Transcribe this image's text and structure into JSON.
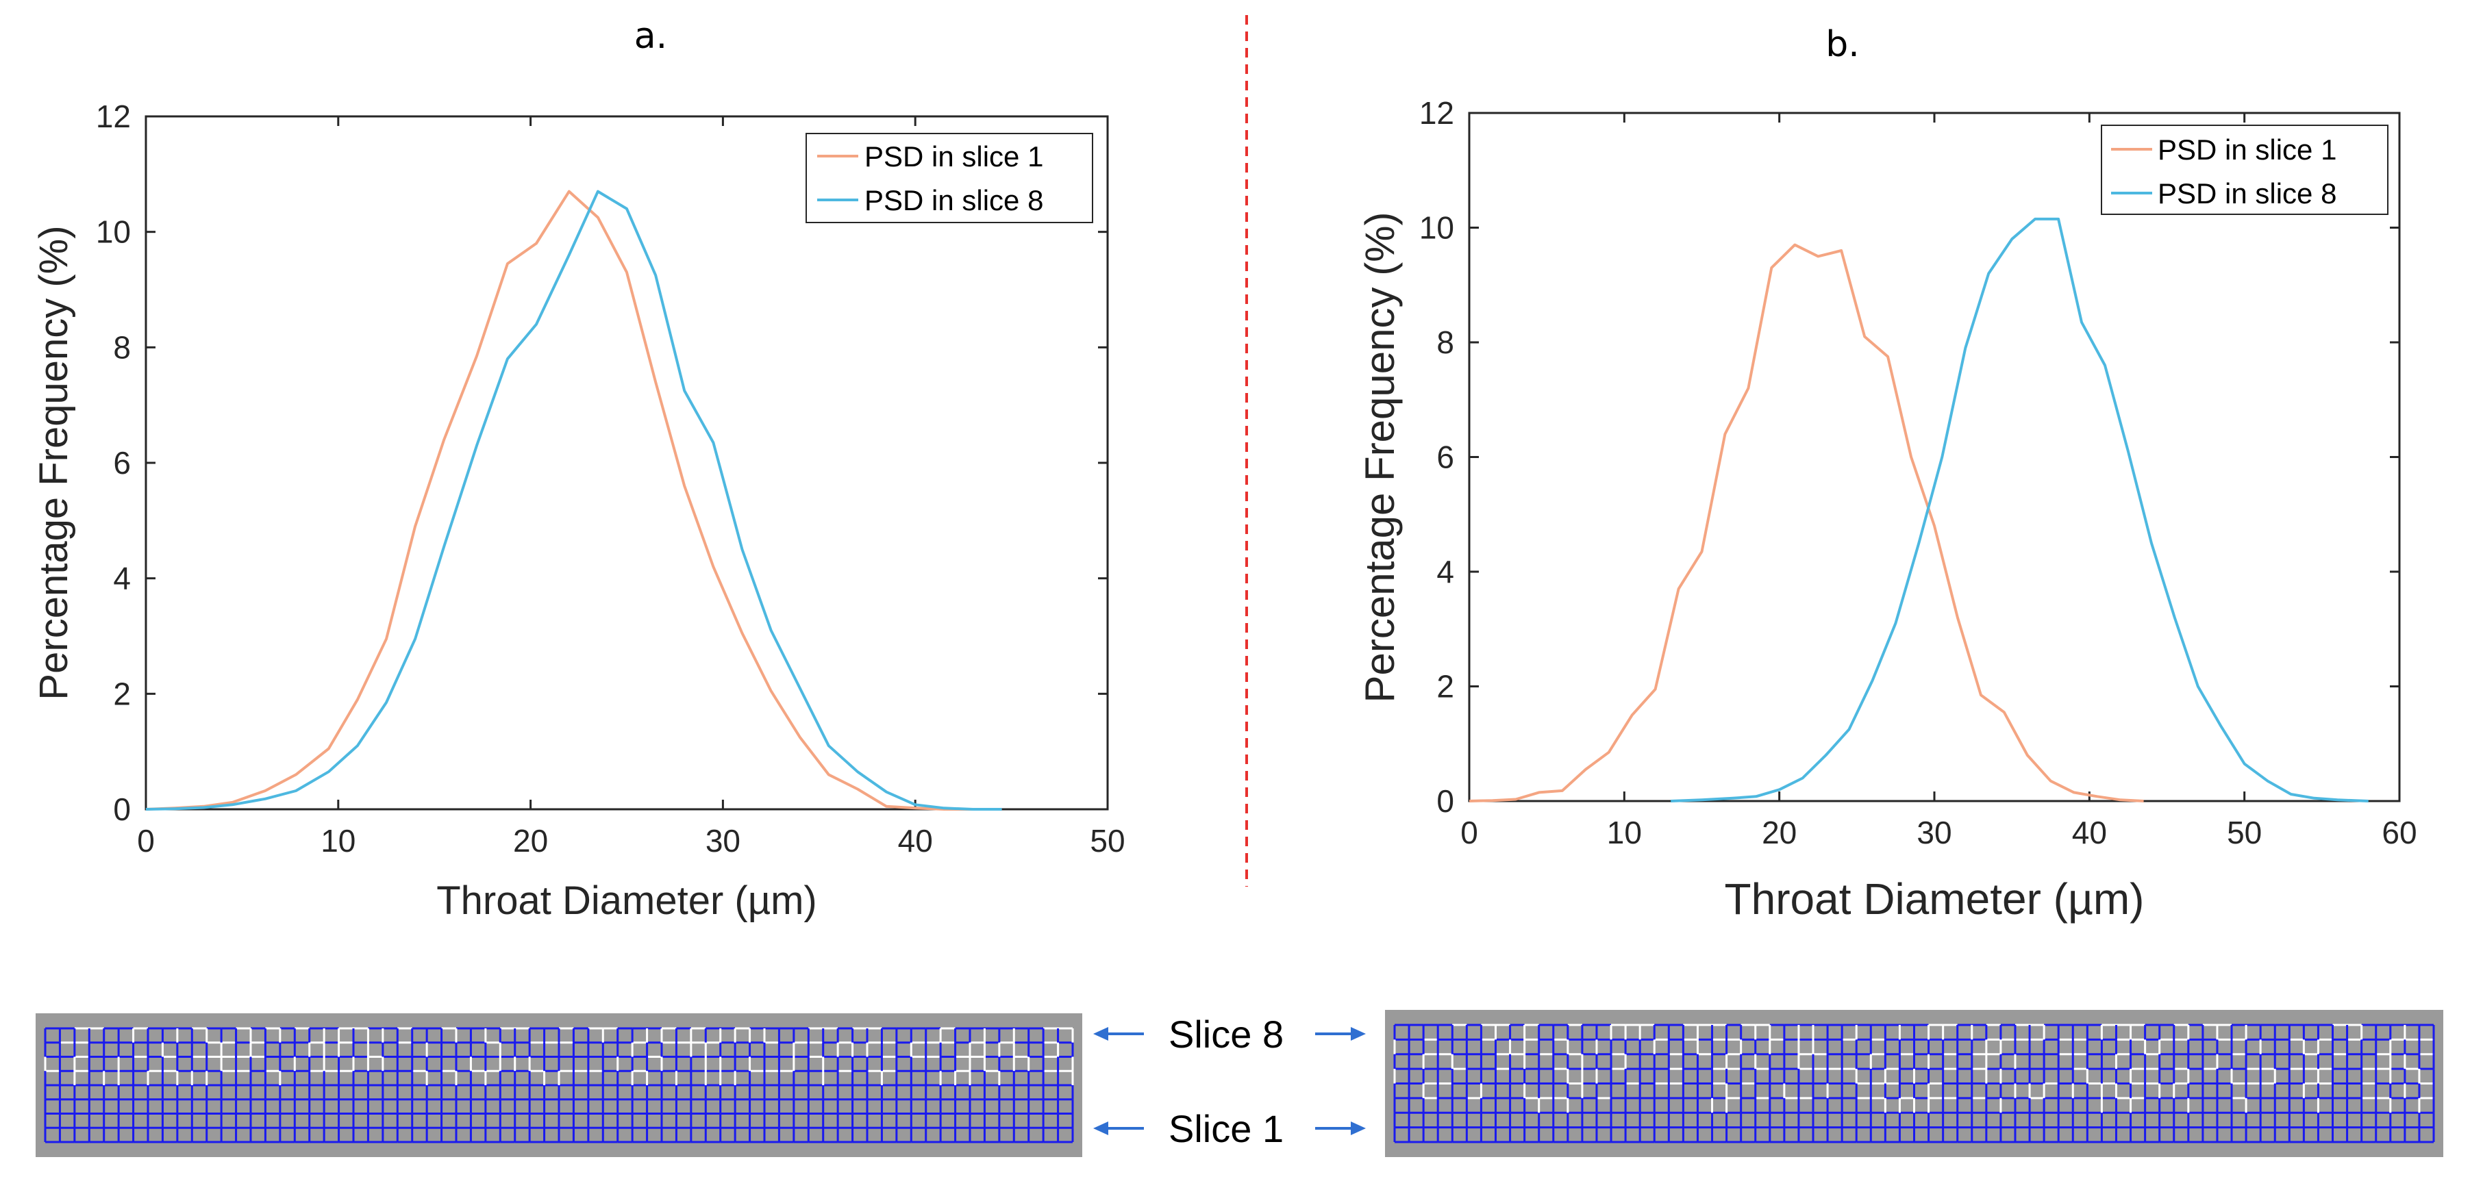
{
  "colors": {
    "slice1": "#f4a582",
    "slice8": "#4db8e0",
    "axis": "#262626",
    "divider": "#e8312e",
    "arrow": "#2f6fd1",
    "grid_bg": "#9a9a9a",
    "grid_line": "#1a1aee",
    "grid_open": "#ffffff"
  },
  "chart_data": [
    {
      "panel_label": "a.",
      "type": "line",
      "title": "",
      "xlabel": "Throat Diameter (µm)",
      "ylabel": "Percentage Frequency (%)",
      "xlim": [
        0,
        50
      ],
      "ylim": [
        0,
        12
      ],
      "xticks": [
        "0",
        "10",
        "20",
        "30",
        "40",
        "50"
      ],
      "yticks": [
        "0",
        "2",
        "4",
        "6",
        "8",
        "10",
        "12"
      ],
      "legend_position": "top-right",
      "series": [
        {
          "name": "PSD in slice 1",
          "x": [
            0,
            1.5,
            3,
            4.5,
            6.2,
            7.8,
            9.5,
            11,
            12.5,
            14,
            15.5,
            17.2,
            18.8,
            20.3,
            22,
            23.5,
            25,
            26.5,
            28,
            29.5,
            31,
            32.5,
            34,
            35.5,
            37,
            38.5,
            40,
            41.5,
            43,
            44.5
          ],
          "values": [
            0,
            0.02,
            0.05,
            0.12,
            0.32,
            0.6,
            1.05,
            1.9,
            2.95,
            4.9,
            6.4,
            7.85,
            9.45,
            9.8,
            10.7,
            10.25,
            9.3,
            7.4,
            5.6,
            4.2,
            3.05,
            2.05,
            1.25,
            0.6,
            0.35,
            0.05,
            0.02,
            0,
            0,
            0
          ]
        },
        {
          "name": "PSD in slice 8",
          "x": [
            0,
            1.5,
            3,
            4.5,
            6.2,
            7.8,
            9.5,
            11,
            12.5,
            14,
            15.5,
            17.2,
            18.8,
            20.3,
            22,
            23.5,
            25,
            26.5,
            28,
            29.5,
            31,
            32.5,
            34,
            35.5,
            37,
            38.5,
            40,
            41.5,
            43,
            44.5
          ],
          "values": [
            0,
            0.01,
            0.03,
            0.08,
            0.18,
            0.32,
            0.65,
            1.1,
            1.85,
            2.95,
            4.55,
            6.3,
            7.8,
            8.4,
            9.6,
            10.7,
            10.4,
            9.25,
            7.25,
            6.35,
            4.5,
            3.1,
            2.1,
            1.1,
            0.65,
            0.3,
            0.08,
            0.02,
            0,
            0
          ]
        }
      ]
    },
    {
      "panel_label": "b.",
      "type": "line",
      "title": "",
      "xlabel": "Throat Diameter (µm)",
      "ylabel": "Percentage Frequency (%)",
      "xlim": [
        0,
        60
      ],
      "ylim": [
        0,
        12
      ],
      "xticks": [
        "0",
        "10",
        "20",
        "30",
        "40",
        "50",
        "60"
      ],
      "yticks": [
        "0",
        "2",
        "4",
        "6",
        "8",
        "10",
        "12"
      ],
      "legend_position": "top-right",
      "series": [
        {
          "name": "PSD in slice 1",
          "x": [
            0,
            1.5,
            3,
            4.5,
            6,
            7.5,
            9,
            10.5,
            12,
            13.5,
            15,
            16.5,
            18,
            19.5,
            21,
            22.5,
            24,
            25.5,
            27,
            28.5,
            30,
            31.5,
            33,
            34.5,
            36,
            37.5,
            39,
            40.5,
            42,
            43.5
          ],
          "values": [
            0,
            0.01,
            0.03,
            0.15,
            0.18,
            0.55,
            0.85,
            1.5,
            1.95,
            3.7,
            4.35,
            6.4,
            7.2,
            9.3,
            9.7,
            9.5,
            9.6,
            8.1,
            7.75,
            6.0,
            4.8,
            3.2,
            1.85,
            1.55,
            0.8,
            0.35,
            0.15,
            0.08,
            0.02,
            0
          ]
        },
        {
          "name": "PSD in slice 8",
          "x": [
            13,
            15,
            17,
            18.5,
            20,
            21.5,
            23,
            24.5,
            26,
            27.5,
            29,
            30.5,
            32,
            33.5,
            35,
            36.5,
            38,
            39.5,
            41,
            42.5,
            44,
            45.5,
            47,
            48.5,
            50,
            51.5,
            53,
            54.5,
            56,
            58
          ],
          "values": [
            0,
            0.02,
            0.05,
            0.08,
            0.2,
            0.4,
            0.8,
            1.25,
            2.1,
            3.1,
            4.5,
            6.0,
            7.9,
            9.2,
            9.8,
            10.15,
            10.15,
            8.35,
            7.6,
            6.1,
            4.5,
            3.2,
            2.0,
            1.3,
            0.65,
            0.35,
            0.12,
            0.05,
            0.02,
            0
          ]
        }
      ]
    }
  ],
  "slice_labels": {
    "top": "Slice 8",
    "bottom": "Slice 1"
  }
}
